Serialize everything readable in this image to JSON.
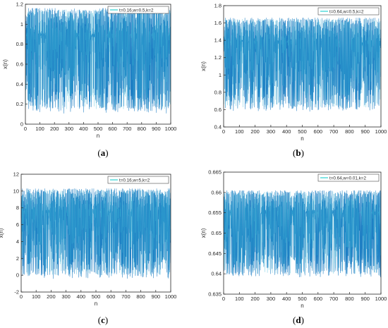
{
  "colors": {
    "series": "#1f7fc4",
    "series_light": "#3fb9d8",
    "axis": "#262626",
    "legend_line": "#00c8c8"
  },
  "chart_data": [
    {
      "id": "a",
      "type": "line",
      "caption_letter": "a",
      "xlabel": "n",
      "ylabel": "x(n)",
      "xlim": [
        0,
        1000
      ],
      "ylim": [
        0,
        1.2
      ],
      "xticks": [
        0,
        100,
        200,
        300,
        400,
        500,
        600,
        700,
        800,
        900,
        1000
      ],
      "yticks": [
        0,
        0.2,
        0.4,
        0.6,
        0.8,
        1,
        1.2
      ],
      "ytick_labels": [
        "0",
        "0.2",
        "0.4",
        "0.6",
        "0.8",
        "1",
        "1.2"
      ],
      "legend": "t=0.16,w=0.5,k=2",
      "legend_position": "top-right",
      "series_range": [
        0.1,
        1.16
      ],
      "series": [
        {
          "name": "t=0.16,w=0.5,k=2",
          "n_points": 1000
        }
      ]
    },
    {
      "id": "b",
      "type": "line",
      "caption_letter": "b",
      "xlabel": "n",
      "ylabel": "x(n)",
      "xlim": [
        0,
        1000
      ],
      "ylim": [
        0.4,
        1.8
      ],
      "xticks": [
        0,
        100,
        200,
        300,
        400,
        500,
        600,
        700,
        800,
        900,
        1000
      ],
      "yticks": [
        0.4,
        0.6,
        0.8,
        1,
        1.2,
        1.4,
        1.6,
        1.8
      ],
      "ytick_labels": [
        "0.4",
        "0.6",
        "0.8",
        "1",
        "1.2",
        "1.4",
        "1.6",
        "1.8"
      ],
      "legend": "t=0.64,w=0.5,k=2",
      "legend_position": "top-right",
      "series_range": [
        0.57,
        1.66
      ],
      "series": [
        {
          "name": "t=0.64,w=0.5,k=2",
          "n_points": 1000
        }
      ]
    },
    {
      "id": "c",
      "type": "line",
      "caption_letter": "c",
      "xlabel": "n",
      "ylabel": "x(n)",
      "xlim": [
        0,
        1000
      ],
      "ylim": [
        -2,
        12
      ],
      "xticks": [
        0,
        100,
        200,
        300,
        400,
        500,
        600,
        700,
        800,
        900,
        1000
      ],
      "yticks": [
        -2,
        0,
        2,
        4,
        6,
        8,
        10,
        12
      ],
      "ytick_labels": [
        "-2",
        "0",
        "2",
        "4",
        "6",
        "8",
        "10",
        "12"
      ],
      "legend": "t=0.16,w=5,k=2",
      "legend_position": "top-right",
      "series_range": [
        -0.5,
        10.3
      ],
      "series": [
        {
          "name": "t=0.16,w=5,k=2",
          "n_points": 1000
        }
      ]
    },
    {
      "id": "d",
      "type": "line",
      "caption_letter": "d",
      "xlabel": "n",
      "ylabel": "x(n)",
      "xlim": [
        0,
        1000
      ],
      "ylim": [
        0.635,
        0.665
      ],
      "xticks": [
        0,
        100,
        200,
        300,
        400,
        500,
        600,
        700,
        800,
        900,
        1000
      ],
      "yticks": [
        0.635,
        0.64,
        0.645,
        0.65,
        0.655,
        0.66,
        0.665
      ],
      "ytick_labels": [
        "0.635",
        "0.64",
        "0.645",
        "0.65",
        "0.655",
        "0.66",
        "0.665"
      ],
      "legend": "t=0.64,w=0.01,k=2",
      "legend_position": "top-right",
      "series_range": [
        0.639,
        0.6605
      ],
      "series": [
        {
          "name": "t=0.64,w=0.01,k=2",
          "n_points": 1000
        }
      ]
    }
  ]
}
